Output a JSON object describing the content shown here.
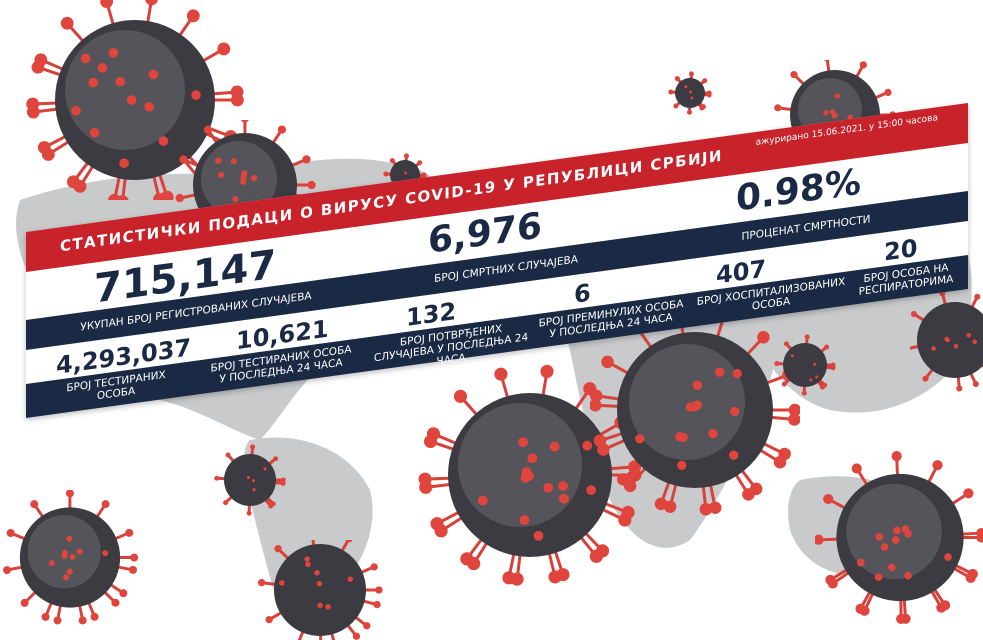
{
  "banner": {
    "title": "СТАТИСТИЧКИ ПОДАЦИ О ВИРУСУ COVID-19 У РЕПУБЛИЦИ СРБИЈИ",
    "updated": "ажурирано 15.06.2021. у 15:00 часова"
  },
  "stats": {
    "total_cases": {
      "value": "715,147",
      "label": "УКУПАН БРОЈ РЕГИСТРОВАНИХ СЛУЧАЈЕВА"
    },
    "deaths": {
      "value": "6,976",
      "label": "БРОЈ СМРТНИХ СЛУЧАЈЕВА"
    },
    "mortality": {
      "value": "0.98%",
      "label": "ПРОЦЕНАТ СМРТНОСТИ"
    },
    "tested": {
      "value": "4,293,037",
      "label": "БРОЈ ТЕСТИРАНИХ ОСОБА"
    },
    "tested_24h": {
      "value": "10,621",
      "label": "БРОЈ ТЕСТИРАНИХ ОСОБА У ПОСЛЕДЊА 24 ЧАСА"
    },
    "confirmed_24h": {
      "value": "132",
      "label": "БРОЈ ПОТВРЂЕНИХ СЛУЧАЈЕВА У ПОСЛЕДЊА 24 ЧАСА"
    },
    "deceased_24h": {
      "value": "6",
      "label": "БРОЈ ПРЕМИНУЛИХ ОСОБА У ПОСЛЕДЊА 24 ЧАСА"
    },
    "hospitalized": {
      "value": "407",
      "label": "БРОЈ ХОСПИТАЛИЗОВАНИХ ОСОБА"
    },
    "ventilators": {
      "value": "20",
      "label": "БРОЈ ОСОБА НА РЕСПИРАТОРИМА"
    }
  },
  "colors": {
    "red": "#c8232b",
    "navy": "#1b2a44",
    "map": "#c8cacc",
    "virus_spike": "#e0453d"
  }
}
